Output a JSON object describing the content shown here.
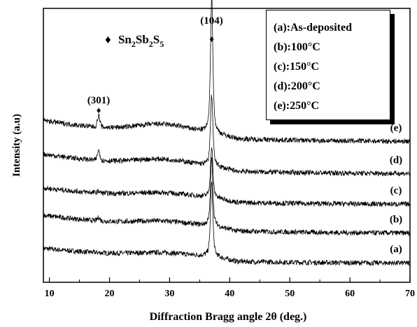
{
  "chart_data": {
    "type": "line",
    "xlabel": "Diffraction Bragg angle 2θ (deg.)",
    "ylabel": "Intensity (a.u)",
    "xlim": [
      9,
      70
    ],
    "x_ticks": [
      "10",
      "20",
      "30",
      "40",
      "50",
      "60",
      "70"
    ],
    "legend": {
      "placement": "top-right",
      "entries": [
        "(a):As-deposited",
        "(b):100°C",
        "(c):150°C",
        "(d):200°C",
        "(e):250°C"
      ]
    },
    "phase_label": {
      "prefix": "Sn",
      "s1": "2",
      "mid1": "Sb",
      "s2": "2",
      "mid2": "S",
      "s3": "5",
      "marker": "♦"
    },
    "peaks": [
      {
        "label": "(301)",
        "x": 18.2,
        "marker": "♦"
      },
      {
        "label": "(104)",
        "x": 37.0,
        "marker": "♦"
      }
    ],
    "series": [
      {
        "name": "(a)",
        "baseline": 0.62,
        "decay": 0.35,
        "broad_hump": 0.1,
        "peak_301": 0.0,
        "peak_104": 2.3
      },
      {
        "name": "(b)",
        "baseline": 1.55,
        "decay": 0.45,
        "broad_hump": 0.12,
        "peak_301": 0.1,
        "peak_104": 2.1
      },
      {
        "name": "(c)",
        "baseline": 2.45,
        "decay": 0.4,
        "broad_hump": 0.12,
        "peak_301": 0.05,
        "peak_104": 1.55
      },
      {
        "name": "(d)",
        "baseline": 3.4,
        "decay": 0.5,
        "broad_hump": 0.18,
        "peak_301": 0.3,
        "peak_104": 2.2
      },
      {
        "name": "(e)",
        "baseline": 4.4,
        "decay": 0.55,
        "broad_hump": 0.25,
        "peak_301": 0.35,
        "peak_104": 4.2
      }
    ]
  }
}
